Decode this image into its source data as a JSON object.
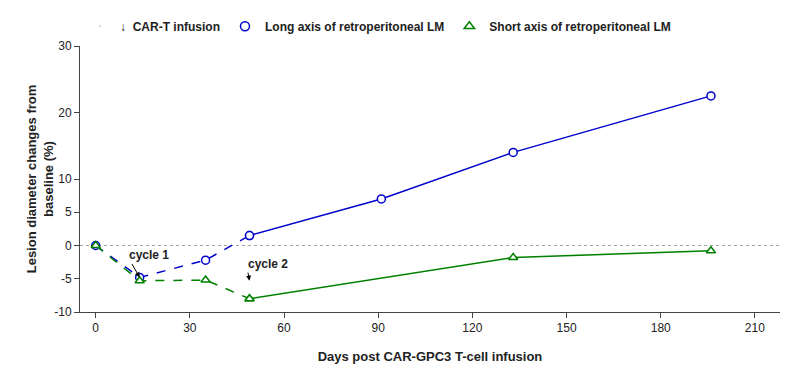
{
  "chart_data": {
    "type": "line",
    "xlabel": "Days post CAR-GPC3 T-cell infusion",
    "ylabel": "Lesion diameter changes from\nbaseline (%)",
    "xlim": [
      -5,
      218
    ],
    "ylim": [
      -10,
      30
    ],
    "xticks": [
      0,
      30,
      60,
      90,
      120,
      150,
      180,
      210
    ],
    "yticks": [
      -10,
      -5,
      0,
      5,
      10,
      20,
      30
    ],
    "grid": false,
    "legend": "top",
    "event_legend": "↓  CAR-T infusion",
    "series": [
      {
        "name": "Long axis of retroperitoneal LM",
        "color": "#0000CC",
        "marker": "circle",
        "segments": [
          {
            "line_style": "dashed",
            "x": [
              0,
              14,
              35,
              49
            ],
            "values": [
              0,
              -4.8,
              -2.2,
              1.5
            ]
          },
          {
            "line_style": "solid",
            "x": [
              49,
              91,
              133,
              196
            ],
            "values": [
              1.5,
              7.0,
              14.0,
              22.5
            ]
          }
        ]
      },
      {
        "name": "Short axis of retroperitoneal LM",
        "color": "#008000",
        "marker": "triangle-up",
        "segments": [
          {
            "line_style": "dashed",
            "x": [
              0,
              14,
              35,
              49
            ],
            "values": [
              0,
              -5.3,
              -5.2,
              -8.0
            ]
          },
          {
            "line_style": "solid",
            "x": [
              49,
              133,
              196
            ],
            "values": [
              -8.0,
              -1.8,
              -0.8
            ]
          }
        ]
      }
    ],
    "annotations": [
      {
        "text": "cycle 1",
        "x": 14,
        "y": -4.8,
        "text_x": 10,
        "text_y": -1.5
      },
      {
        "text": "cycle 2",
        "x": 49,
        "y": -5.3,
        "text_x": 48,
        "text_y": -2.8
      }
    ],
    "hlines": [
      0
    ]
  }
}
